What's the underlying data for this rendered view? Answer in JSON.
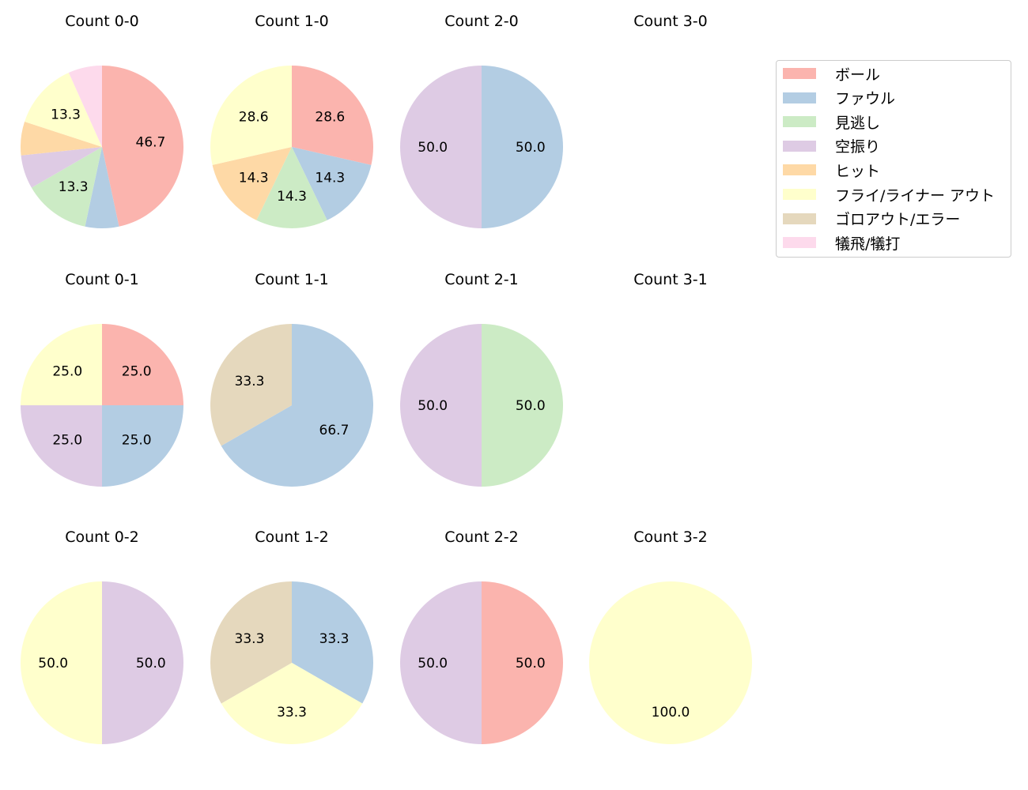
{
  "chart_data": {
    "type": "pie",
    "categories": [
      "ボール",
      "ファウル",
      "見逃し",
      "空振り",
      "ヒット",
      "フライ/ライナー アウト",
      "ゴロアウト/エラー",
      "犠飛/犠打"
    ],
    "colors": [
      "#fbb4ae",
      "#b3cde3",
      "#ccebc5",
      "#decbe4",
      "#fed9a6",
      "#ffffcc",
      "#e5d8bd",
      "#fddaec"
    ],
    "legend_position": "upper right",
    "subplots": [
      {
        "title": "Count 0-0",
        "row": 0,
        "col": 0,
        "values": [
          46.7,
          6.7,
          13.3,
          6.7,
          6.7,
          13.3,
          0,
          6.7
        ],
        "labels_shown": [
          "46.7",
          "",
          "13.3",
          "",
          "",
          "13.3",
          "",
          ""
        ]
      },
      {
        "title": "Count 1-0",
        "row": 0,
        "col": 1,
        "values": [
          28.6,
          14.3,
          14.3,
          0,
          14.3,
          28.6,
          0,
          0
        ],
        "labels_shown": [
          "28.6",
          "14.3",
          "14.3",
          "",
          "14.3",
          "28.6",
          "",
          ""
        ]
      },
      {
        "title": "Count 2-0",
        "row": 0,
        "col": 2,
        "values": [
          0,
          50.0,
          0,
          50.0,
          0,
          0,
          0,
          0
        ],
        "labels_shown": [
          "",
          "50.0",
          "",
          "50.0",
          "",
          "",
          "",
          ""
        ]
      },
      {
        "title": "Count 3-0",
        "row": 0,
        "col": 3,
        "values": [],
        "labels_shown": []
      },
      {
        "title": "Count 0-1",
        "row": 1,
        "col": 0,
        "values": [
          25.0,
          25.0,
          0,
          25.0,
          0,
          25.0,
          0,
          0
        ],
        "labels_shown": [
          "25.0",
          "25.0",
          "",
          "25.0",
          "",
          "25.0",
          "",
          ""
        ]
      },
      {
        "title": "Count 1-1",
        "row": 1,
        "col": 1,
        "values": [
          0,
          66.7,
          0,
          0,
          0,
          0,
          33.3,
          0
        ],
        "labels_shown": [
          "",
          "66.7",
          "",
          "",
          "",
          "",
          "33.3",
          ""
        ]
      },
      {
        "title": "Count 2-1",
        "row": 1,
        "col": 2,
        "values": [
          0,
          0,
          50.0,
          50.0,
          0,
          0,
          0,
          0
        ],
        "labels_shown": [
          "",
          "",
          "50.0",
          "50.0",
          "",
          "",
          "",
          ""
        ]
      },
      {
        "title": "Count 3-1",
        "row": 1,
        "col": 3,
        "values": [],
        "labels_shown": []
      },
      {
        "title": "Count 0-2",
        "row": 2,
        "col": 0,
        "values": [
          0,
          0,
          0,
          50.0,
          0,
          50.0,
          0,
          0
        ],
        "labels_shown": [
          "",
          "",
          "",
          "50.0",
          "",
          "50.0",
          "",
          ""
        ]
      },
      {
        "title": "Count 1-2",
        "row": 2,
        "col": 1,
        "values": [
          0,
          33.3,
          0,
          0,
          0,
          33.3,
          33.3,
          0
        ],
        "labels_shown": [
          "",
          "33.3",
          "",
          "",
          "",
          "33.3",
          "33.3",
          ""
        ]
      },
      {
        "title": "Count 2-2",
        "row": 2,
        "col": 2,
        "values": [
          50.0,
          0,
          0,
          50.0,
          0,
          0,
          0,
          0
        ],
        "labels_shown": [
          "50.0",
          "",
          "",
          "50.0",
          "",
          "",
          "",
          ""
        ]
      },
      {
        "title": "Count 3-2",
        "row": 2,
        "col": 3,
        "values": [
          0,
          0,
          0,
          0,
          0,
          100.0,
          0,
          0
        ],
        "labels_shown": [
          "",
          "",
          "",
          "",
          "",
          "100.0",
          "",
          ""
        ]
      }
    ]
  }
}
